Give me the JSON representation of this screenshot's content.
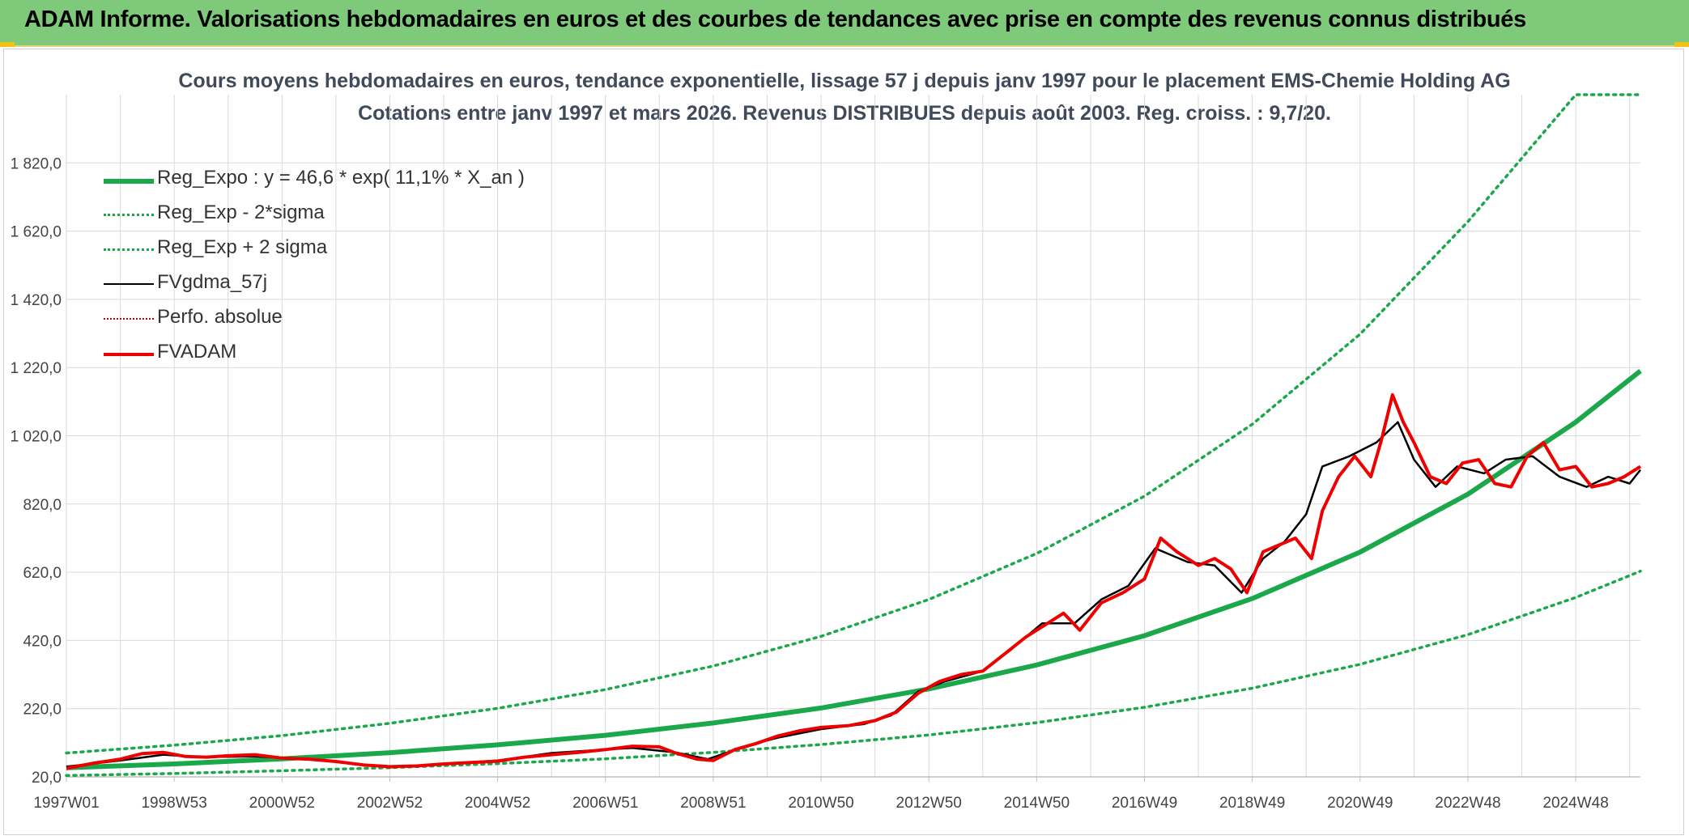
{
  "header": {
    "title": "ADAM Informe. Valorisations hebdomadaires en euros et des courbes de tendances avec prise en compte des revenus connus distribués"
  },
  "colors": {
    "banner": "#7ec97a",
    "trend": "#1ba84a",
    "band": "#1ba84a",
    "smooth": "#000000",
    "perf": "#c00000",
    "price": "#ee0000",
    "grid": "#d9d9d9"
  },
  "chart_data": {
    "type": "line",
    "title": "Cours moyens hebdomadaires en euros, tendance exponentielle, lissage 57 j depuis janv 1997 pour le placement EMS-Chemie Holding AG",
    "subtitle": "Cotations entre janv 1997 et mars 2026. Revenus DISTRIBUES depuis août 2003. Reg. croiss. : 9,7/20.",
    "xlabel": "",
    "ylabel": "",
    "x_range": [
      1997.0,
      2026.2
    ],
    "ylim": [
      20,
      2020
    ],
    "yticks": [
      20,
      220,
      420,
      620,
      820,
      1020,
      1220,
      1420,
      1620,
      1820
    ],
    "ytick_labels": [
      "20,0",
      "220,0",
      "420,0",
      "620,0",
      "820,0",
      "1 020,0",
      "1 220,0",
      "1 420,0",
      "1 620,0",
      "1 820,0"
    ],
    "xtick_labels": [
      "1997W01",
      "1998W53",
      "2000W52",
      "2002W52",
      "2004W52",
      "2006W51",
      "2008W51",
      "2010W50",
      "2012W50",
      "2014W50",
      "2016W49",
      "2018W49",
      "2020W49",
      "2022W48",
      "2024W48"
    ],
    "xtick_positions": [
      1997.0,
      1999.0,
      2001.0,
      2003.0,
      2005.0,
      2007.0,
      2009.0,
      2011.0,
      2013.0,
      2015.0,
      2017.0,
      2019.0,
      2021.0,
      2023.0,
      2025.0
    ],
    "grid": true,
    "legend_position": "top-left",
    "series": [
      {
        "name": "Reg_Expo : y = 46,6 * exp( 11,1% *  X_an )",
        "style": "trend",
        "x": [
          1997.0,
          1999.0,
          2001.0,
          2003.0,
          2005.0,
          2007.0,
          2009.0,
          2011.0,
          2013.0,
          2015.0,
          2017.0,
          2019.0,
          2021.0,
          2023.0,
          2025.0,
          2026.2
        ],
        "y": [
          46.6,
          58,
          73,
          91,
          114,
          142,
          178,
          222,
          278,
          348,
          434,
          543,
          679,
          849,
          1060,
          1210
        ]
      },
      {
        "name": "Reg_Exp - 2*sigma",
        "style": "band",
        "x": [
          1997.0,
          1999.0,
          2001.0,
          2003.0,
          2005.0,
          2007.0,
          2009.0,
          2011.0,
          2013.0,
          2015.0,
          2017.0,
          2019.0,
          2021.0,
          2023.0,
          2025.0,
          2026.2
        ],
        "y": [
          24,
          30,
          38,
          47,
          59,
          73,
          92,
          115,
          143,
          179,
          224,
          280,
          350,
          437,
          546,
          623
        ]
      },
      {
        "name": "Reg_Exp + 2 sigma",
        "style": "band",
        "x": [
          1997.0,
          1999.0,
          2001.0,
          2003.0,
          2005.0,
          2007.0,
          2009.0,
          2011.0,
          2013.0,
          2015.0,
          2017.0,
          2019.0,
          2021.0,
          2023.0,
          2025.0,
          2026.2
        ],
        "y": [
          90,
          113,
          141,
          177,
          221,
          276,
          345,
          432,
          540,
          675,
          843,
          1054,
          1318,
          1648,
          2020,
          2020
        ]
      },
      {
        "name": "FVgdma_57j",
        "style": "smooth",
        "x": [
          1997.0,
          1998.0,
          1998.8,
          1999.5,
          2000.5,
          2001.5,
          2002.3,
          2003.0,
          2004.0,
          2005.0,
          2006.0,
          2007.0,
          2007.5,
          2008.3,
          2008.9,
          2009.6,
          2010.2,
          2011.0,
          2011.8,
          2012.3,
          2012.8,
          2013.3,
          2014.0,
          2014.5,
          2015.1,
          2015.7,
          2016.2,
          2016.7,
          2017.2,
          2017.8,
          2018.3,
          2018.8,
          2019.2,
          2019.6,
          2020.0,
          2020.3,
          2020.8,
          2021.3,
          2021.7,
          2022.0,
          2022.4,
          2022.8,
          2023.3,
          2023.7,
          2024.2,
          2024.7,
          2025.2,
          2025.6,
          2026.0,
          2026.2
        ],
        "y": [
          50,
          68,
          85,
          78,
          80,
          72,
          60,
          48,
          58,
          68,
          90,
          100,
          105,
          92,
          72,
          110,
          135,
          160,
          175,
          200,
          270,
          300,
          330,
          390,
          470,
          470,
          540,
          580,
          690,
          650,
          640,
          560,
          660,
          710,
          790,
          930,
          960,
          1000,
          1060,
          950,
          870,
          930,
          910,
          950,
          960,
          900,
          870,
          900,
          880,
          920
        ]
      },
      {
        "name": "Perfo. absolue",
        "style": "perf",
        "x": [],
        "y": []
      },
      {
        "name": "FVADAM",
        "style": "price",
        "x": [
          1997.0,
          1997.5,
          1998.0,
          1998.4,
          1998.8,
          1999.2,
          1999.6,
          2000.0,
          2000.5,
          2001.0,
          2001.5,
          2002.0,
          2002.5,
          2003.0,
          2003.5,
          2004.0,
          2004.5,
          2005.0,
          2005.5,
          2006.0,
          2006.5,
          2007.0,
          2007.5,
          2008.0,
          2008.3,
          2008.7,
          2009.0,
          2009.4,
          2009.8,
          2010.2,
          2010.6,
          2011.0,
          2011.5,
          2012.0,
          2012.4,
          2012.8,
          2013.2,
          2013.6,
          2014.0,
          2014.4,
          2014.8,
          2015.2,
          2015.5,
          2015.8,
          2016.2,
          2016.6,
          2017.0,
          2017.3,
          2017.6,
          2018.0,
          2018.3,
          2018.6,
          2018.9,
          2019.2,
          2019.5,
          2019.8,
          2020.1,
          2020.3,
          2020.6,
          2020.9,
          2021.2,
          2021.4,
          2021.6,
          2021.8,
          2022.0,
          2022.3,
          2022.6,
          2022.9,
          2023.2,
          2023.5,
          2023.8,
          2024.1,
          2024.4,
          2024.7,
          2025.0,
          2025.3,
          2025.6,
          2025.9,
          2026.2
        ],
        "y": [
          45,
          60,
          72,
          88,
          92,
          80,
          78,
          82,
          85,
          75,
          72,
          65,
          55,
          50,
          52,
          58,
          62,
          66,
          78,
          85,
          92,
          100,
          110,
          108,
          90,
          72,
          68,
          100,
          118,
          140,
          155,
          165,
          170,
          185,
          210,
          265,
          300,
          320,
          330,
          380,
          430,
          470,
          500,
          450,
          530,
          560,
          600,
          720,
          680,
          640,
          660,
          630,
          560,
          680,
          700,
          720,
          660,
          800,
          900,
          960,
          900,
          1010,
          1140,
          1060,
          1000,
          900,
          880,
          940,
          950,
          880,
          870,
          960,
          1000,
          920,
          930,
          870,
          880,
          900,
          930
        ]
      }
    ]
  }
}
